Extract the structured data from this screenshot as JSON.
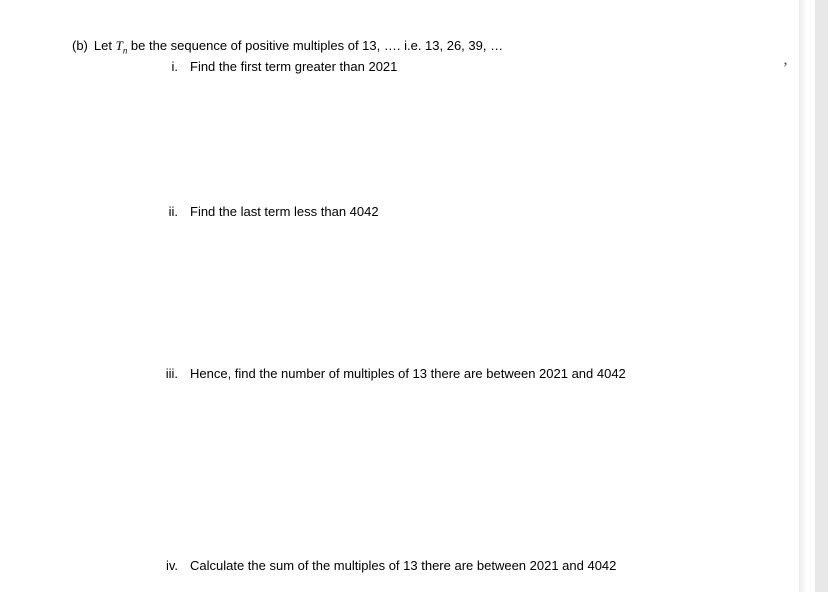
{
  "page": {
    "background_color": "#ffffff",
    "outer_background": "#e8e8e8",
    "text_color": "#000000",
    "body_fontsize": 13
  },
  "intro": {
    "part_label": "(b)",
    "before_var": "Let ",
    "variable": "T",
    "subscript": "n",
    "after_var": " be the sequence of positive multiples of 13, …. i.e.  13, 26, 39, …"
  },
  "items": {
    "i": {
      "roman": "i.",
      "text": "Find the first term greater than 2021"
    },
    "ii": {
      "roman": "ii.",
      "text": "Find the last term less than 4042"
    },
    "iii": {
      "roman": "iii.",
      "text": "Hence, find the number of multiples of 13 there are between 2021 and 4042"
    },
    "iv": {
      "roman": "iv.",
      "text": "Calculate the sum of the multiples of 13 there are between 2021 and 4042"
    }
  },
  "annotations": {
    "tick": "ʼ"
  }
}
